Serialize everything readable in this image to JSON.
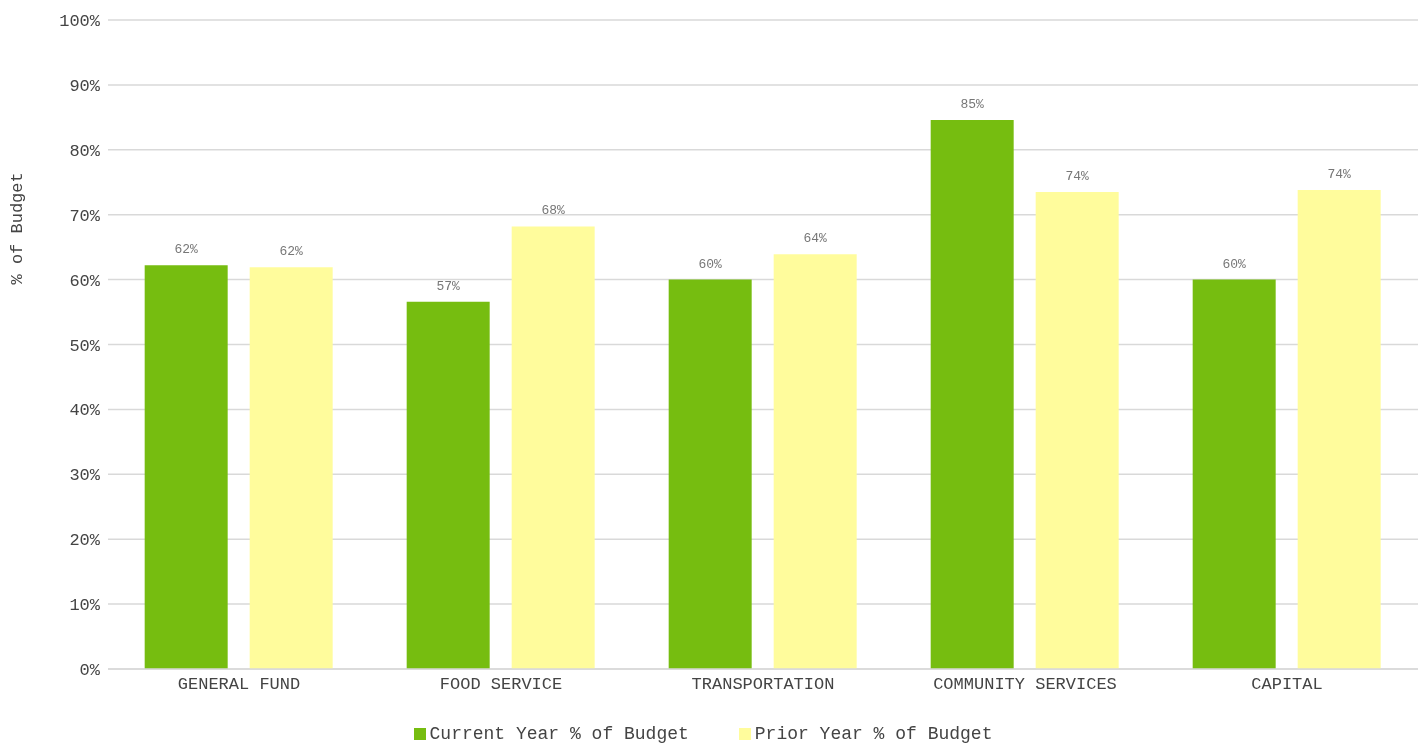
{
  "chart_data": {
    "type": "bar",
    "ylabel": "% of Budget",
    "categories": [
      "GENERAL FUND",
      "FOOD SERVICE",
      "TRANSPORTATION",
      "COMMUNITY SERVICES",
      "CAPITAL"
    ],
    "series": [
      {
        "name": "Current Year % of Budget",
        "color": "#76bd10",
        "values": [
          62.2,
          56.6,
          60.0,
          84.6,
          60.0
        ],
        "value_labels": [
          "62%",
          "57%",
          "60%",
          "85%",
          "60%"
        ]
      },
      {
        "name": "Prior Year % of Budget",
        "color": "#fffc9c",
        "values": [
          61.9,
          68.2,
          63.9,
          73.5,
          73.8
        ],
        "value_labels": [
          "62%",
          "68%",
          "64%",
          "74%",
          "74%"
        ]
      }
    ],
    "ylim": [
      0,
      100
    ],
    "yticks": [
      {
        "value": 0,
        "label": "0%"
      },
      {
        "value": 10,
        "label": "10%"
      },
      {
        "value": 20,
        "label": "20%"
      },
      {
        "value": 30,
        "label": "30%"
      },
      {
        "value": 40,
        "label": "40%"
      },
      {
        "value": 50,
        "label": "50%"
      },
      {
        "value": 60,
        "label": "60%"
      },
      {
        "value": 70,
        "label": "70%"
      },
      {
        "value": 80,
        "label": "80%"
      },
      {
        "value": 90,
        "label": "90%"
      },
      {
        "value": 100,
        "label": "100%"
      }
    ],
    "grid": "y",
    "legend": "bottom"
  }
}
